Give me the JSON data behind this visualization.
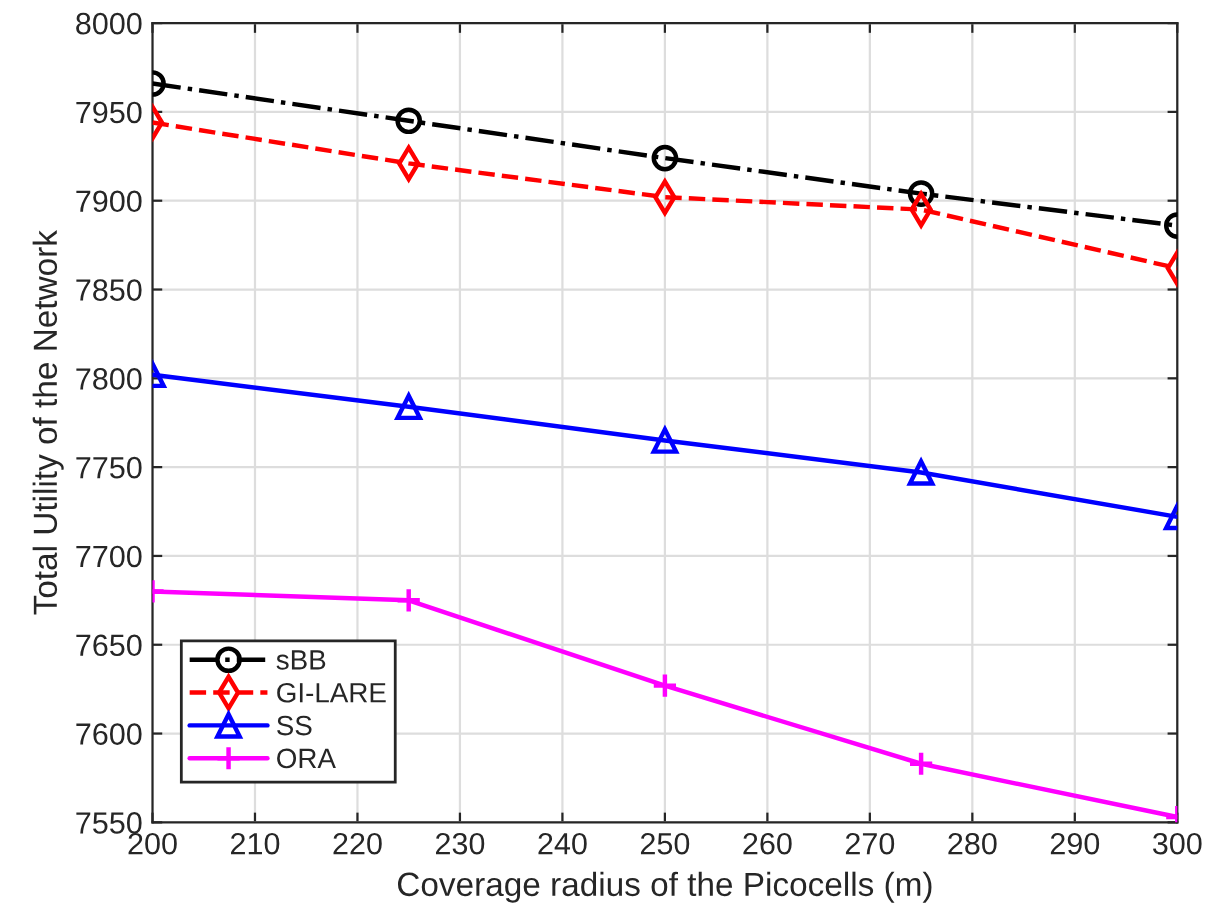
{
  "chart_data": {
    "type": "line",
    "xlabel": "Coverage radius of the Picocells (m)",
    "ylabel": "Total Utility of the Network",
    "x": [
      200,
      225,
      250,
      275,
      300
    ],
    "series": [
      {
        "name": "sBB",
        "color": "#000000",
        "marker": "circle",
        "line_style": "dashdot",
        "values": [
          7966,
          7945,
          7924,
          7904,
          7886
        ]
      },
      {
        "name": "GI-LARE",
        "color": "#ff0000",
        "marker": "diamond",
        "line_style": "dashed",
        "values": [
          7944,
          7921,
          7902,
          7895,
          7862
        ]
      },
      {
        "name": "SS",
        "color": "#0000ff",
        "marker": "triangle",
        "line_style": "solid",
        "values": [
          7802,
          7784,
          7765,
          7747,
          7722
        ]
      },
      {
        "name": "ORA",
        "color": "#ff00ff",
        "marker": "plus",
        "line_style": "solid",
        "values": [
          7680,
          7675,
          7627,
          7583,
          7553
        ]
      }
    ],
    "xlim": [
      200,
      300
    ],
    "xticks": [
      200,
      210,
      220,
      230,
      240,
      250,
      260,
      270,
      280,
      290,
      300
    ],
    "ylim": [
      7550,
      8000
    ],
    "yticks": [
      7550,
      7600,
      7650,
      7700,
      7750,
      7800,
      7850,
      7900,
      7950,
      8000
    ],
    "grid": true,
    "legend": "bottom left"
  }
}
